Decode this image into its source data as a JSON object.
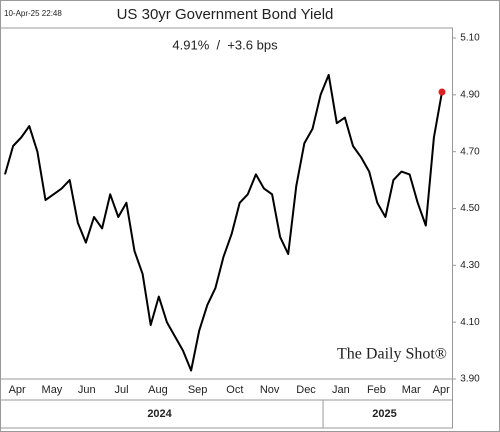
{
  "chart_data": {
    "type": "line",
    "timestamp": "10-Apr-25 22:48",
    "title": "US 30yr Government Bond Yield",
    "subtitle": "4.91%  /  +3.6 bps",
    "watermark": "The Daily Shot®",
    "color": "#000000",
    "marker_color": "#e02020",
    "values": [
      4.62,
      4.72,
      4.75,
      4.79,
      4.7,
      4.53,
      4.55,
      4.57,
      4.6,
      4.45,
      4.38,
      4.47,
      4.43,
      4.55,
      4.47,
      4.52,
      4.35,
      4.27,
      4.09,
      4.19,
      4.1,
      4.05,
      4.0,
      3.93,
      4.07,
      4.16,
      4.22,
      4.33,
      4.41,
      4.52,
      4.55,
      4.62,
      4.57,
      4.55,
      4.4,
      4.34,
      4.58,
      4.73,
      4.78,
      4.9,
      4.97,
      4.8,
      4.82,
      4.72,
      4.68,
      4.63,
      4.52,
      4.47,
      4.6,
      4.63,
      4.62,
      4.52,
      4.44,
      4.75,
      4.91
    ],
    "xlim": [
      0,
      54
    ],
    "xticks": [
      {
        "value": 1.5,
        "label": "Apr"
      },
      {
        "value": 5.8,
        "label": "May"
      },
      {
        "value": 10.1,
        "label": "Jun"
      },
      {
        "value": 14.4,
        "label": "Jul"
      },
      {
        "value": 18.9,
        "label": "Aug"
      },
      {
        "value": 23.8,
        "label": "Sep"
      },
      {
        "value": 28.4,
        "label": "Oct"
      },
      {
        "value": 32.7,
        "label": "Nov"
      },
      {
        "value": 37.2,
        "label": "Dec"
      },
      {
        "value": 41.5,
        "label": "Jan"
      },
      {
        "value": 45.9,
        "label": "Feb"
      },
      {
        "value": 50.2,
        "label": "Mar"
      },
      {
        "value": 53.9,
        "label": "Apr"
      }
    ],
    "years": [
      {
        "value": 19.1,
        "label": "2024"
      },
      {
        "value": 46.9,
        "label": "2025"
      }
    ],
    "year_divider": 39.3,
    "ylim": [
      3.9,
      5.1
    ],
    "yticks": [
      {
        "value": 3.9,
        "label": "3.90"
      },
      {
        "value": 4.1,
        "label": "4.10"
      },
      {
        "value": 4.3,
        "label": "4.30"
      },
      {
        "value": 4.5,
        "label": "4.50"
      },
      {
        "value": 4.7,
        "label": "4.70"
      },
      {
        "value": 4.9,
        "label": "4.90"
      },
      {
        "value": 5.1,
        "label": "5.10"
      }
    ],
    "grid": false
  }
}
